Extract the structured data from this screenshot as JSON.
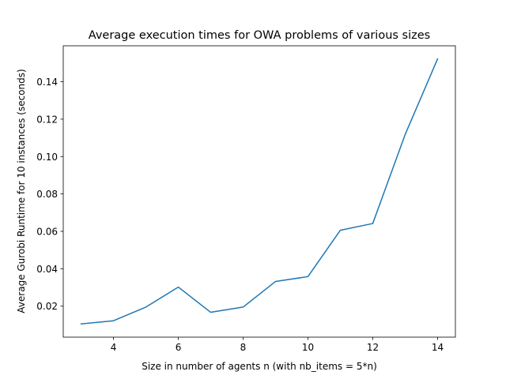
{
  "chart_data": {
    "type": "line",
    "title": "Average execution times for OWA problems of various sizes",
    "xlabel": "Size in number of agents n (with nb_items = 5*n)",
    "ylabel": "Average Gurobi Runtime for 10 instances (seconds)",
    "x": [
      3,
      4,
      5,
      6,
      7,
      8,
      9,
      10,
      11,
      12,
      13,
      14
    ],
    "series": [
      {
        "values": [
          0.0105,
          0.0122,
          0.0195,
          0.0302,
          0.0167,
          0.0195,
          0.0332,
          0.0358,
          0.0606,
          0.0642,
          0.1118,
          0.1522
        ],
        "color": "#1f77b4"
      }
    ],
    "xlim": [
      2.45,
      14.55
    ],
    "ylim": [
      0.00342,
      0.15923
    ],
    "xticks": [
      4,
      6,
      8,
      10,
      12,
      14
    ],
    "xtick_labels": [
      "4",
      "6",
      "8",
      "10",
      "12",
      "14"
    ],
    "yticks": [
      0.02,
      0.04,
      0.06,
      0.08,
      0.1,
      0.12,
      0.14
    ],
    "ytick_labels": [
      "0.02",
      "0.04",
      "0.06",
      "0.08",
      "0.10",
      "0.12",
      "0.14"
    ],
    "grid": false,
    "legend": "none"
  }
}
